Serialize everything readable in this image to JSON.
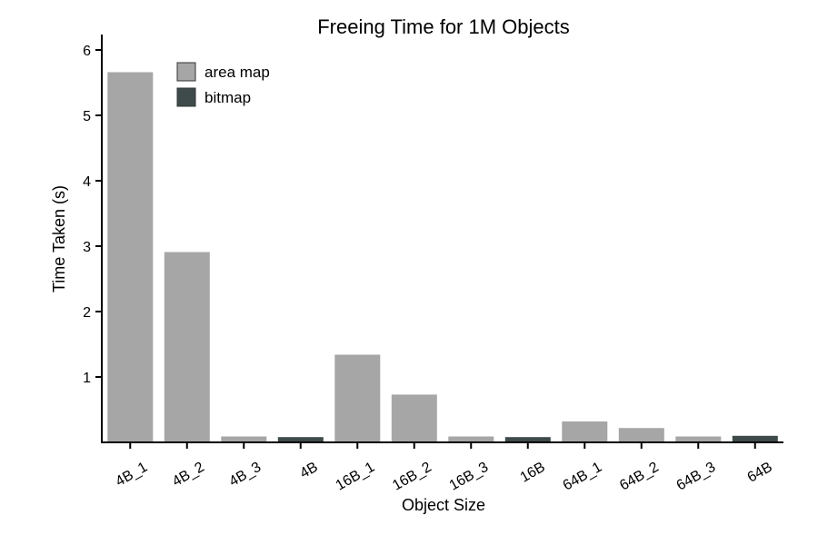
{
  "chart_data": {
    "type": "bar",
    "title": "Freeing Time for 1M Objects",
    "xlabel": "Object Size",
    "ylabel": "Time Taken (s)",
    "ylim": [
      0,
      6.2
    ],
    "yticks": [
      "1",
      "2",
      "3",
      "4",
      "5",
      "6"
    ],
    "categories": [
      "4B_1",
      "4B_2",
      "4B_3",
      "4B",
      "16B_1",
      "16B_2",
      "16B_3",
      "16B",
      "64B_1",
      "64B_2",
      "64B_3",
      "64B"
    ],
    "series": [
      {
        "name": "area map",
        "color": "#a6a6a6"
      },
      {
        "name": "bitmap",
        "color": "#3f4b4b"
      }
    ],
    "values": [
      5.66,
      2.91,
      0.09,
      0.08,
      1.34,
      0.73,
      0.09,
      0.08,
      0.32,
      0.22,
      0.09,
      0.1
    ],
    "bar_series": [
      "area map",
      "area map",
      "area map",
      "bitmap",
      "area map",
      "area map",
      "area map",
      "bitmap",
      "area map",
      "area map",
      "area map",
      "bitmap"
    ],
    "grid": false,
    "legend_position": "top-left"
  }
}
